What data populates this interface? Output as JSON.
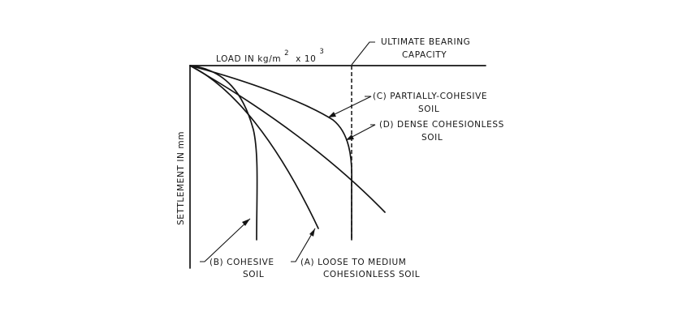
{
  "diagram": {
    "x_axis_label": {
      "main": "LOAD IN kg/m",
      "power2": "2",
      "times": "x 10",
      "power3": "3"
    },
    "y_axis_label": "SETTLEMENT IN mm",
    "ultimate_bearing_capacity": {
      "line1": "ULTIMATE BEARING",
      "line2": "CAPACITY"
    },
    "curves": {
      "a": {
        "line1": "(A) LOOSE TO MEDIUM",
        "line2": "COHESIONLESS SOIL"
      },
      "b": {
        "line1": "(B) COHESIVE",
        "line2": "SOIL"
      },
      "c": {
        "line1": "(C) PARTIALLY-COHESIVE",
        "line2": "SOIL"
      },
      "d": {
        "line1": "(D) DENSE COHESIONLESS",
        "line2": "SOIL"
      }
    }
  }
}
